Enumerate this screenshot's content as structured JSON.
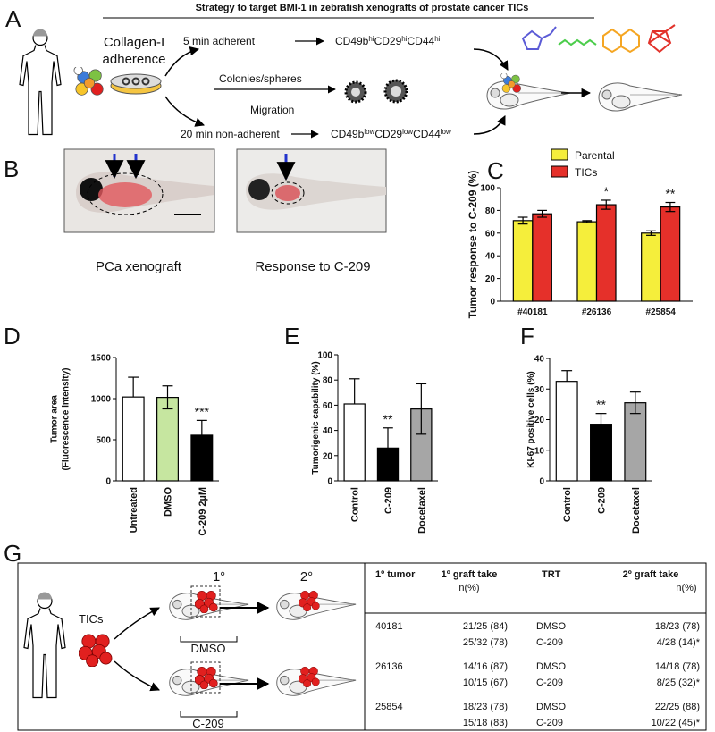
{
  "panel_a": {
    "label": "A",
    "title": "Strategy to target BMI-1  in zebrafish  xenografts of prostate cancer TICs",
    "method": [
      "Collagen-I",
      "adherence"
    ],
    "route_top": "5 min adherent",
    "route_mid": "Colonies/spheres",
    "route_bottom_label": "Migration",
    "route_bottom": "20 min non-adherent",
    "marker_top": [
      "CD49b",
      "hi",
      "CD29",
      "hi",
      "CD44",
      "hi"
    ],
    "marker_bottom": [
      "CD49b",
      "low",
      "CD29",
      "low",
      "CD44",
      "low"
    ]
  },
  "panel_b": {
    "label": "B",
    "captions": [
      "PCa xenograft",
      "Response to C-209"
    ]
  },
  "chart_data": [
    {
      "type": "bar",
      "panel": "C",
      "y_label": [
        "Tumor response to C-209 (%)"
      ],
      "categories": [
        "#40181",
        "#26136",
        "#25854"
      ],
      "series": [
        {
          "name": "Parental",
          "color": "#f5ee3b",
          "values": [
            71,
            70,
            60
          ],
          "errors": [
            3,
            1,
            2
          ]
        },
        {
          "name": "TICs",
          "color": "#e5302a",
          "values": [
            77,
            85,
            83
          ],
          "errors": [
            3,
            4,
            4
          ]
        }
      ],
      "annotations": [
        null,
        "*",
        "**"
      ],
      "ylim": [
        0,
        100
      ],
      "yticks": [
        0,
        20,
        40,
        60,
        80,
        100
      ]
    },
    {
      "type": "bar",
      "panel": "D",
      "y_label": [
        "Tumor area",
        "(Fluorescence intensity)"
      ],
      "categories": [
        "Untreated",
        "DMSO",
        "C-209 2µM"
      ],
      "values": [
        1020,
        1015,
        555
      ],
      "errors": [
        240,
        140,
        180
      ],
      "colors": [
        "#ffffff",
        "#c6e6a0",
        "#000000"
      ],
      "annotations": [
        null,
        null,
        "***"
      ],
      "ylim": [
        0,
        1500
      ],
      "yticks": [
        0,
        500,
        1000,
        1500
      ]
    },
    {
      "type": "bar",
      "panel": "E",
      "y_label": [
        "Tumorigenic capability (%)"
      ],
      "categories": [
        "Control",
        "C-209",
        "Docetaxel"
      ],
      "values": [
        61,
        26,
        57
      ],
      "errors": [
        20,
        16,
        20
      ],
      "colors": [
        "#ffffff",
        "#000000",
        "#a6a6a6"
      ],
      "annotations": [
        null,
        "**",
        null
      ],
      "ylim": [
        0,
        100
      ],
      "yticks": [
        0,
        20,
        40,
        60,
        80,
        100
      ]
    },
    {
      "type": "bar",
      "panel": "F",
      "y_label": [
        "KI-67 positive cells (%)"
      ],
      "categories": [
        "Control",
        "C-209",
        "Docetaxel"
      ],
      "values": [
        32.5,
        18.5,
        25.5
      ],
      "errors": [
        3.5,
        3.5,
        3.5
      ],
      "colors": [
        "#ffffff",
        "#000000",
        "#a6a6a6"
      ],
      "annotations": [
        null,
        "**",
        null
      ],
      "ylim": [
        0,
        40
      ],
      "yticks": [
        0,
        10,
        20,
        30,
        40
      ]
    }
  ],
  "panel_g": {
    "label": "G",
    "cells": "TICs",
    "stages": [
      "1°",
      "2°"
    ],
    "treatments": [
      "DMSO",
      "C-209"
    ],
    "table": {
      "header": [
        [
          "1º tumor"
        ],
        [
          "1º graft take",
          "n(%)"
        ],
        [
          "TRT"
        ],
        [
          "2º graft take",
          " n(%)"
        ]
      ],
      "groups": [
        {
          "tumor": "40181",
          "rows": [
            [
              "21/25 (84)",
              "DMSO",
              "18/23 (78)"
            ],
            [
              "25/32 (78)",
              "C-209",
              "4/28 (14)*"
            ]
          ]
        },
        {
          "tumor": "26136",
          "rows": [
            [
              "14/16 (87)",
              "DMSO",
              "14/18 (78)"
            ],
            [
              "10/15 (67)",
              "C-209",
              "8/25 (32)*"
            ]
          ]
        },
        {
          "tumor": "25854",
          "rows": [
            [
              "18/23 (78)",
              "DMSO",
              "22/25 (88)"
            ],
            [
              "15/18 (83)",
              "C-209",
              "10/22 (45)*"
            ]
          ]
        }
      ]
    }
  }
}
